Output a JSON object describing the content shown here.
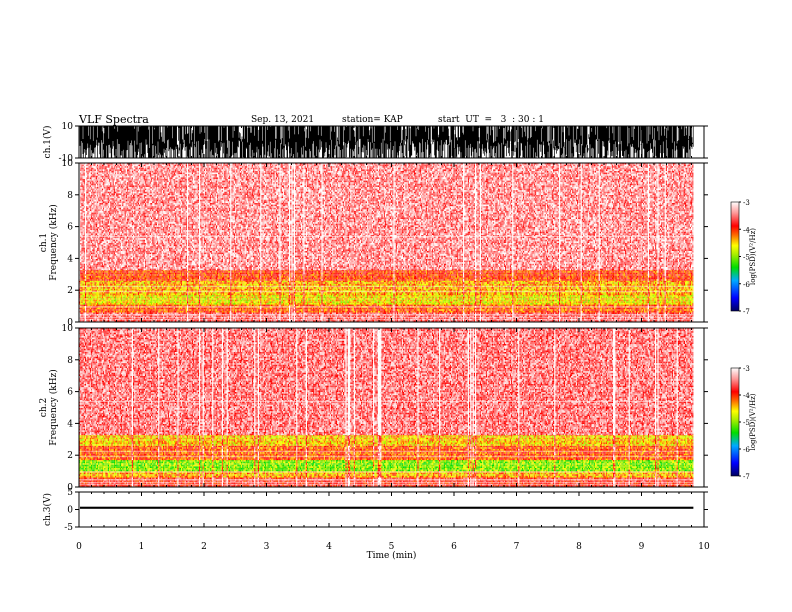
{
  "header": {
    "title": "VLF Spectra",
    "date": "Sep. 13, 2021",
    "station": "station= KAP",
    "start": "start  UT  =   3  : 30 : 1"
  },
  "chart_data": [
    {
      "id": "ch1-waveform",
      "type": "line",
      "ylabel": "ch.1(V)",
      "ylim": [
        -10,
        10
      ],
      "yticks": [
        10,
        -10
      ],
      "xlim": [
        0,
        10
      ],
      "data_end_x": 9.83,
      "description_of_data": "dense clipped waveform, mostly saturated near ±10 V"
    },
    {
      "id": "ch1-spectrogram",
      "type": "heatmap",
      "ylabel": "ch.1\nFrequency  (kHz)",
      "ylim": [
        0,
        10
      ],
      "yticks": [
        0,
        2,
        4,
        6,
        8,
        10
      ],
      "xlim": [
        0,
        10
      ],
      "data_end_x": 9.83,
      "bands": [
        {
          "f_from": 0.0,
          "f_to": 0.6,
          "level": -3.6
        },
        {
          "f_from": 0.6,
          "f_to": 1.1,
          "level": -4.1
        },
        {
          "f_from": 1.1,
          "f_to": 1.7,
          "level": -4.6
        },
        {
          "f_from": 1.7,
          "f_to": 2.6,
          "level": -4.4
        },
        {
          "f_from": 2.6,
          "f_to": 3.3,
          "level": -4.0
        },
        {
          "f_from": 3.3,
          "f_to": 10.0,
          "level": -3.4
        }
      ],
      "colorbar": {
        "label": "log(PSD)(V²/Hz)",
        "range": [
          -7,
          -3
        ],
        "ticks": [
          -3,
          -4,
          -5,
          -6,
          -7
        ]
      }
    },
    {
      "id": "ch2-spectrogram",
      "type": "heatmap",
      "ylabel": "ch.2\nFrequency  (kHz)",
      "ylim": [
        0,
        10
      ],
      "yticks": [
        0,
        2,
        4,
        6,
        8,
        10
      ],
      "xlim": [
        0,
        10
      ],
      "data_end_x": 9.83,
      "bands": [
        {
          "f_from": 0.0,
          "f_to": 0.6,
          "level": -3.8
        },
        {
          "f_from": 0.6,
          "f_to": 1.0,
          "level": -4.4
        },
        {
          "f_from": 1.0,
          "f_to": 1.7,
          "level": -5.0
        },
        {
          "f_from": 1.7,
          "f_to": 2.6,
          "level": -4.1
        },
        {
          "f_from": 2.6,
          "f_to": 3.3,
          "level": -4.5
        },
        {
          "f_from": 3.3,
          "f_to": 10.0,
          "level": -3.5
        }
      ],
      "colorbar": {
        "label": "log(PSD)(V²/Hz)",
        "range": [
          -7,
          -3
        ],
        "ticks": [
          -3,
          -4,
          -5,
          -6,
          -7
        ]
      }
    },
    {
      "id": "ch3-waveform",
      "type": "line",
      "ylabel": "ch.3(V)",
      "ylim": [
        -5,
        5
      ],
      "yticks": [
        5,
        0,
        -5
      ],
      "xlim": [
        0,
        10
      ],
      "data_end_x": 9.83,
      "baseline_v": 0.5,
      "amplitude_v": 0.6
    }
  ],
  "xaxis": {
    "label": "Time  (min)",
    "ticks": [
      0,
      1,
      2,
      3,
      4,
      5,
      6,
      7,
      8,
      9,
      10
    ]
  },
  "colors": {
    "colormap": [
      "#000088",
      "#0000ff",
      "#00aaff",
      "#00dd00",
      "#aaee00",
      "#ffff00",
      "#ff6600",
      "#ff0000",
      "#ff9999",
      "#ffffff"
    ],
    "trace": "#000000"
  }
}
